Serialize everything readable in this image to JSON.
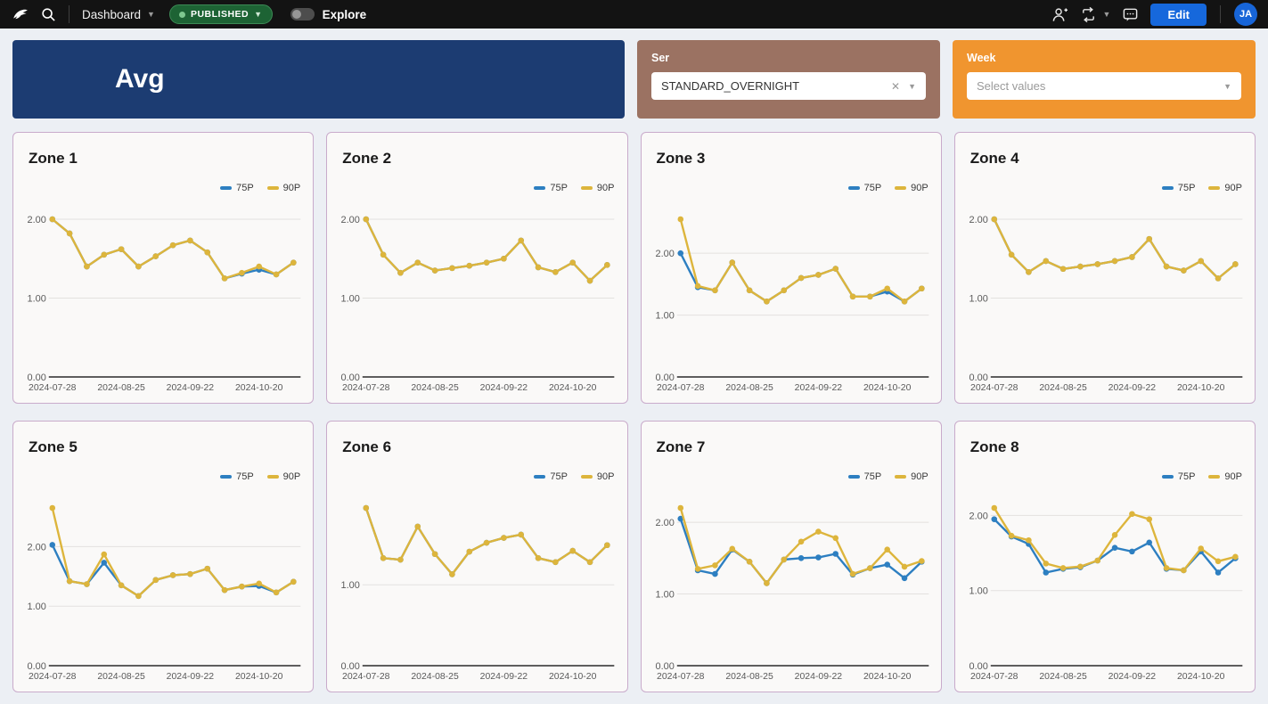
{
  "navbar": {
    "brand_icon": "preset-bird-logo",
    "dashboard_label": "Dashboard",
    "published_badge": "PUBLISHED",
    "explore_label": "Explore",
    "edit_button": "Edit",
    "avatar_initials": "JA"
  },
  "header_banner": {
    "title": "Avg"
  },
  "filters": {
    "service": {
      "label": "Ser",
      "value": "STANDARD_OVERNIGHT",
      "bg": "#9b7262"
    },
    "week": {
      "label": "Week",
      "placeholder": "Select values",
      "bg": "#f0952f"
    }
  },
  "colors": {
    "navbar_bg": "#131313",
    "primary_blue": "#1668dc",
    "banner_navy": "#1c3c72",
    "published_green": "#1d6334",
    "card_border": "#c9abcb",
    "page_bg": "#eceff4",
    "series_75p": "#2d7fc1",
    "series_90p": "#ddb53c",
    "gridline": "#e3e1df",
    "axis_line": "#2b2b2b",
    "tick_text": "#5a5a5a"
  },
  "chart_data": {
    "type": "line",
    "x": [
      "2024-07-28",
      "2024-08-04",
      "2024-08-11",
      "2024-08-18",
      "2024-08-25",
      "2024-09-01",
      "2024-09-08",
      "2024-09-15",
      "2024-09-22",
      "2024-09-29",
      "2024-10-06",
      "2024-10-13",
      "2024-10-20",
      "2024-10-27",
      "2024-11-03"
    ],
    "x_tick_labels": [
      "2024-07-28",
      "2024-08-25",
      "2024-09-22",
      "2024-10-20"
    ],
    "x_tick_indices": [
      0,
      4,
      8,
      12
    ],
    "y_ticks": [
      "0.00",
      "1.00",
      "2.00"
    ],
    "ylim_min": 0,
    "grid": true,
    "legend_position": "top-right",
    "series_names": [
      "75P",
      "90P"
    ],
    "series_colors": {
      "75P": "#2d7fc1",
      "90P": "#ddb53c"
    },
    "charts": [
      {
        "title": "Zone 1",
        "p75": [
          2.0,
          1.82,
          1.4,
          1.55,
          1.62,
          1.4,
          1.53,
          1.67,
          1.73,
          1.58,
          1.25,
          1.31,
          1.36,
          1.3,
          1.45
        ],
        "p90": [
          2.0,
          1.82,
          1.4,
          1.55,
          1.62,
          1.4,
          1.53,
          1.67,
          1.73,
          1.58,
          1.25,
          1.32,
          1.4,
          1.3,
          1.45
        ]
      },
      {
        "title": "Zone 2",
        "p75": [
          2.0,
          1.55,
          1.32,
          1.45,
          1.35,
          1.38,
          1.41,
          1.45,
          1.5,
          1.73,
          1.39,
          1.33,
          1.45,
          1.22,
          1.42
        ],
        "p90": [
          2.0,
          1.55,
          1.32,
          1.45,
          1.35,
          1.38,
          1.41,
          1.45,
          1.5,
          1.73,
          1.39,
          1.33,
          1.45,
          1.22,
          1.42
        ]
      },
      {
        "title": "Zone 3",
        "p75": [
          2.0,
          1.45,
          1.4,
          1.85,
          1.4,
          1.22,
          1.4,
          1.6,
          1.65,
          1.75,
          1.3,
          1.3,
          1.38,
          1.22,
          1.43
        ],
        "p90": [
          2.55,
          1.47,
          1.4,
          1.85,
          1.4,
          1.22,
          1.4,
          1.6,
          1.65,
          1.75,
          1.3,
          1.3,
          1.43,
          1.22,
          1.43
        ]
      },
      {
        "title": "Zone 4",
        "p75": [
          2.0,
          1.55,
          1.33,
          1.47,
          1.37,
          1.4,
          1.43,
          1.47,
          1.52,
          1.75,
          1.4,
          1.35,
          1.47,
          1.25,
          1.43
        ],
        "p90": [
          2.0,
          1.55,
          1.33,
          1.47,
          1.37,
          1.4,
          1.43,
          1.47,
          1.52,
          1.75,
          1.4,
          1.35,
          1.47,
          1.25,
          1.43
        ]
      },
      {
        "title": "Zone 5",
        "p75": [
          2.03,
          1.42,
          1.37,
          1.73,
          1.35,
          1.17,
          1.44,
          1.52,
          1.54,
          1.63,
          1.27,
          1.33,
          1.34,
          1.23,
          1.41
        ],
        "p90": [
          2.65,
          1.42,
          1.37,
          1.87,
          1.35,
          1.17,
          1.44,
          1.52,
          1.54,
          1.63,
          1.27,
          1.33,
          1.38,
          1.23,
          1.41
        ]
      },
      {
        "title": "Zone 6",
        "p75": [
          1.95,
          1.33,
          1.31,
          1.72,
          1.38,
          1.13,
          1.41,
          1.52,
          1.58,
          1.62,
          1.33,
          1.28,
          1.42,
          1.28,
          1.49
        ],
        "p90": [
          1.95,
          1.33,
          1.31,
          1.72,
          1.38,
          1.13,
          1.41,
          1.52,
          1.58,
          1.62,
          1.33,
          1.28,
          1.42,
          1.28,
          1.49
        ]
      },
      {
        "title": "Zone 7",
        "p75": [
          2.05,
          1.33,
          1.28,
          1.62,
          1.45,
          1.15,
          1.48,
          1.5,
          1.51,
          1.56,
          1.27,
          1.36,
          1.41,
          1.22,
          1.45
        ],
        "p90": [
          2.2,
          1.35,
          1.4,
          1.63,
          1.45,
          1.15,
          1.48,
          1.73,
          1.87,
          1.78,
          1.28,
          1.36,
          1.62,
          1.38,
          1.46
        ]
      },
      {
        "title": "Zone 8",
        "p75": [
          1.95,
          1.72,
          1.62,
          1.24,
          1.29,
          1.31,
          1.4,
          1.57,
          1.52,
          1.64,
          1.29,
          1.27,
          1.52,
          1.24,
          1.43
        ],
        "p90": [
          2.1,
          1.73,
          1.67,
          1.36,
          1.3,
          1.32,
          1.4,
          1.74,
          2.02,
          1.95,
          1.3,
          1.27,
          1.56,
          1.39,
          1.45
        ]
      }
    ]
  }
}
